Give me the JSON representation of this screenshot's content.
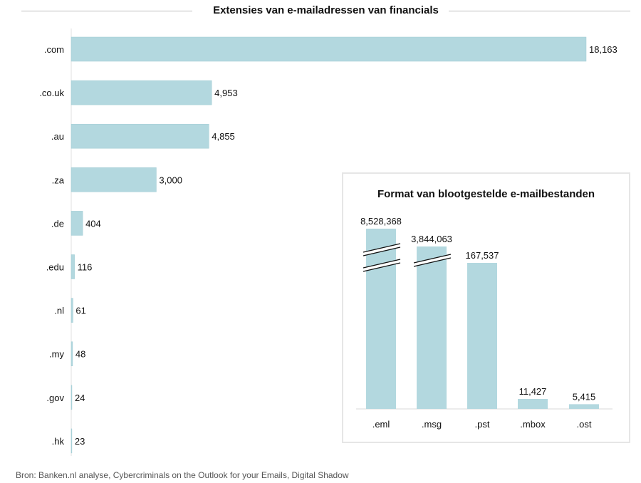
{
  "chart_data": [
    {
      "type": "bar",
      "orientation": "horizontal",
      "title": "Extensies van e-mailadressen van financials",
      "categories": [
        ".com",
        ".co.uk",
        ".au",
        ".za",
        ".de",
        ".edu",
        ".nl",
        ".my",
        ".gov",
        ".hk"
      ],
      "values": [
        18163,
        4953,
        4855,
        3000,
        404,
        116,
        61,
        48,
        24,
        23
      ],
      "value_labels": [
        "18,163",
        "4,953",
        "4,855",
        "3,000",
        "404",
        "116",
        "61",
        "48",
        "24",
        "23"
      ],
      "xlabel": "",
      "ylabel": "",
      "xlim": [
        0,
        18163
      ],
      "grid": false,
      "color": "#b3d8df"
    },
    {
      "type": "bar",
      "orientation": "vertical",
      "title": "Format van blootgestelde e-mailbestanden",
      "categories": [
        ".eml",
        ".msg",
        ".pst",
        ".mbox",
        ".ost"
      ],
      "values": [
        8528368,
        3844063,
        167537,
        11427,
        5415
      ],
      "value_labels": [
        "8,528,368",
        "3,844,063",
        "167,537",
        "11,427",
        "5,415"
      ],
      "axis_break": [
        true,
        true,
        false,
        false,
        false
      ],
      "xlabel": "",
      "ylabel": "",
      "grid": false,
      "color": "#b3d8df"
    }
  ],
  "source": "Bron: Banken.nl analyse, Cybercriminals on the Outlook for your Emails, Digital Shadow"
}
